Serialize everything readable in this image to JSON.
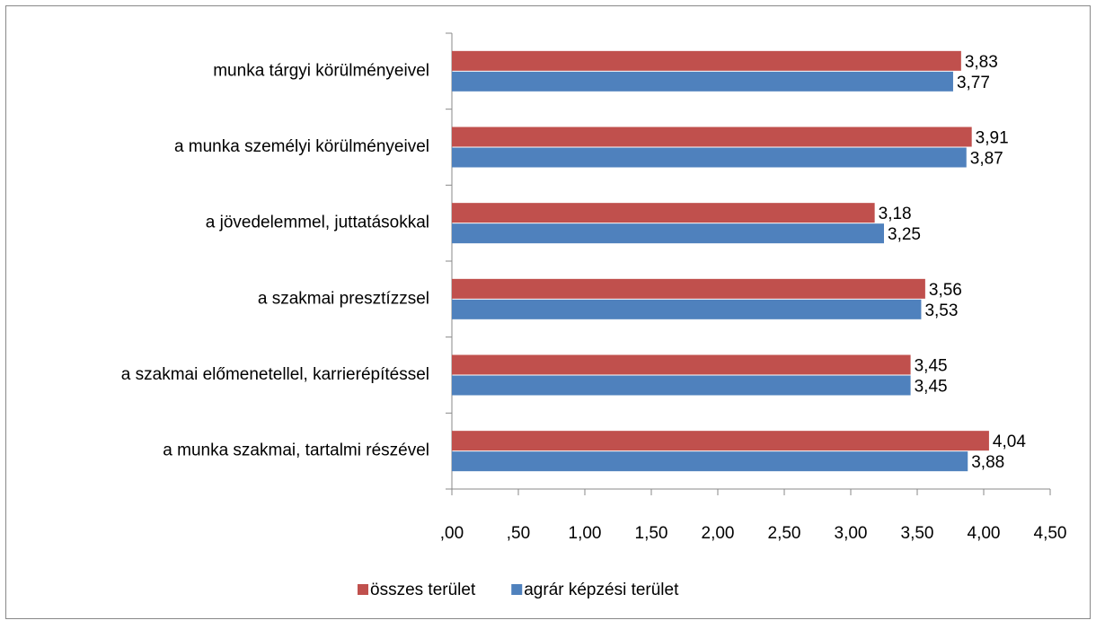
{
  "chart_data": {
    "type": "hbar",
    "categories": [
      "munka tárgyi körülményeivel",
      "a munka személyi körülményeivel",
      "a jövedelemmel, juttatásokkal",
      "a szakmai presztízzsel",
      "a szakmai előmenetellel, karrierépítéssel",
      "a munka szakmai, tartalmi részével"
    ],
    "series": [
      {
        "name": "összes terület",
        "color": "#c0504d",
        "values": [
          3.83,
          3.91,
          3.18,
          3.56,
          3.45,
          4.04
        ],
        "value_labels": [
          "3,83",
          "3,91",
          "3,18",
          "3,56",
          "3,45",
          "4,04"
        ]
      },
      {
        "name": "agrár képzési terület",
        "color": "#4f81bd",
        "values": [
          3.77,
          3.87,
          3.25,
          3.53,
          3.45,
          3.88
        ],
        "value_labels": [
          "3,77",
          "3,87",
          "3,25",
          "3,53",
          "3,45",
          "3,88"
        ]
      }
    ],
    "xlim": [
      0,
      4.5
    ],
    "xticks": [
      {
        "value": 0,
        "label": ",00"
      },
      {
        "value": 0.5,
        "label": ",50"
      },
      {
        "value": 1,
        "label": "1,00"
      },
      {
        "value": 1.5,
        "label": "1,50"
      },
      {
        "value": 2,
        "label": "2,00"
      },
      {
        "value": 2.5,
        "label": "2,50"
      },
      {
        "value": 3,
        "label": "3,00"
      },
      {
        "value": 3.5,
        "label": "3,50"
      },
      {
        "value": 4,
        "label": "4,00"
      },
      {
        "value": 4.5,
        "label": "4,50"
      }
    ],
    "grid": false,
    "legend": "bottom"
  }
}
